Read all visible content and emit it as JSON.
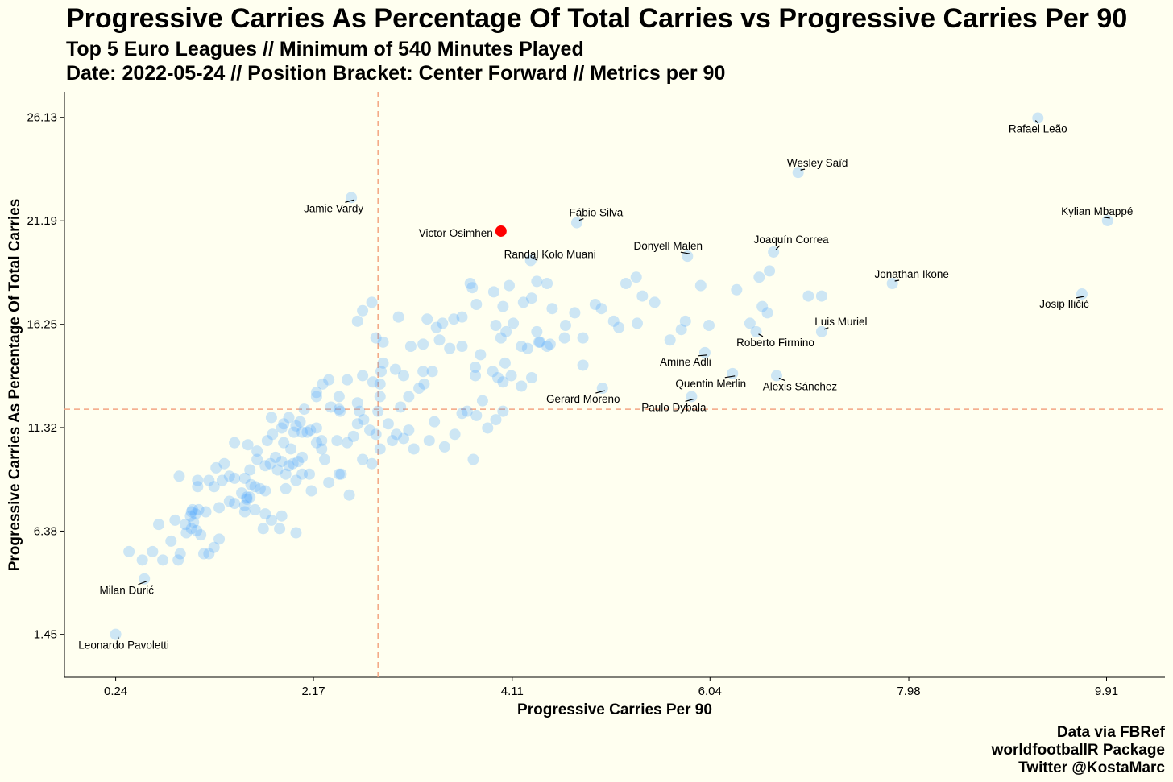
{
  "title": "Progressive Carries As Percentage Of Total Carries vs Progressive Carries Per 90",
  "subtitle_lines": [
    "Top 5 Euro Leagues // Minimum of 540 Minutes Played",
    "Date: 2022-05-24 // Position Bracket: Center Forward // Metrics per 90"
  ],
  "caption_lines": [
    "Data via FBRef",
    "worldfootballR Package",
    "Twitter @KostaMarc"
  ],
  "colors": {
    "background": "#fffff0",
    "point": "#4da6ff",
    "highlight": "#ff0000",
    "reference_line": "#f4a582"
  },
  "chart_data": {
    "type": "scatter",
    "xlabel": "Progressive Carries Per 90",
    "ylabel": "Progressive Carries As Percentage Of Total Carries",
    "xlim": [
      -0.26,
      10.48
    ],
    "ylim": [
      -0.6,
      27.35
    ],
    "xticks": [
      0.24,
      2.17,
      4.11,
      6.04,
      7.98,
      9.91
    ],
    "xtick_labels": [
      "0.24",
      "2.17",
      "4.11",
      "6.04",
      "7.98",
      "9.91"
    ],
    "yticks": [
      1.45,
      6.38,
      11.32,
      16.25,
      21.19,
      26.13
    ],
    "ytick_labels": [
      "1.45",
      "6.38",
      "11.32",
      "16.25",
      "21.19",
      "26.13"
    ],
    "reference_lines": {
      "x": 2.8,
      "y": 12.2
    },
    "grid": false,
    "highlighted": {
      "name": "Victor Osimhen",
      "x": 4.0,
      "y": 20.7
    },
    "labeled_points": [
      {
        "name": "Rafael Leão",
        "x": 9.24,
        "y": 26.1
      },
      {
        "name": "Wesley Saïd",
        "x": 6.9,
        "y": 23.5
      },
      {
        "name": "Jamie Vardy",
        "x": 2.54,
        "y": 22.3
      },
      {
        "name": "Fábio Silva",
        "x": 4.74,
        "y": 21.1
      },
      {
        "name": "Kylian Mbappé",
        "x": 9.92,
        "y": 21.2
      },
      {
        "name": "Joaquín Correa",
        "x": 6.66,
        "y": 19.7
      },
      {
        "name": "Donyell Malen",
        "x": 5.82,
        "y": 19.5
      },
      {
        "name": "Randal Kolo Muani",
        "x": 4.29,
        "y": 19.3
      },
      {
        "name": "Jonathan Ikone",
        "x": 7.82,
        "y": 18.2
      },
      {
        "name": "Josip Iličić",
        "x": 9.67,
        "y": 17.7
      },
      {
        "name": "Luis Muriel",
        "x": 7.13,
        "y": 15.9
      },
      {
        "name": "Roberto Firmino",
        "x": 6.49,
        "y": 15.9
      },
      {
        "name": "Amine Adli",
        "x": 5.99,
        "y": 14.9
      },
      {
        "name": "Quentin Merlin",
        "x": 6.26,
        "y": 13.9
      },
      {
        "name": "Alexis Sánchez",
        "x": 6.69,
        "y": 13.8
      },
      {
        "name": "Gerard Moreno",
        "x": 4.99,
        "y": 13.2
      },
      {
        "name": "Paulo Dybala",
        "x": 5.86,
        "y": 12.8
      },
      {
        "name": "Milan Đurić",
        "x": 0.52,
        "y": 4.1
      },
      {
        "name": "Leonardo Pavoletti",
        "x": 0.24,
        "y": 1.45
      }
    ],
    "points": [
      [
        0.37,
        5.4
      ],
      [
        0.6,
        5.4
      ],
      [
        0.78,
        5.9
      ],
      [
        0.5,
        5.0
      ],
      [
        0.7,
        5.0
      ],
      [
        0.85,
        5.0
      ],
      [
        0.87,
        5.3
      ],
      [
        0.66,
        6.7
      ],
      [
        0.82,
        6.9
      ],
      [
        0.92,
        6.7
      ],
      [
        0.93,
        6.3
      ],
      [
        0.98,
        6.5
      ],
      [
        0.97,
        7.1
      ],
      [
        0.98,
        7.3
      ],
      [
        1.0,
        6.8
      ],
      [
        0.99,
        7.4
      ],
      [
        1.02,
        7.2
      ],
      [
        1.05,
        7.4
      ],
      [
        1.03,
        6.4
      ],
      [
        1.07,
        6.2
      ],
      [
        1.1,
        5.3
      ],
      [
        1.15,
        5.3
      ],
      [
        1.2,
        5.6
      ],
      [
        1.25,
        6.0
      ],
      [
        1.12,
        7.3
      ],
      [
        1.25,
        7.5
      ],
      [
        1.35,
        7.8
      ],
      [
        1.4,
        7.7
      ],
      [
        1.5,
        7.6
      ],
      [
        1.5,
        7.3
      ],
      [
        1.6,
        7.4
      ],
      [
        1.7,
        7.2
      ],
      [
        1.68,
        6.5
      ],
      [
        1.76,
        6.9
      ],
      [
        1.86,
        7.1
      ],
      [
        1.84,
        6.5
      ],
      [
        2.0,
        6.3
      ],
      [
        0.86,
        9.0
      ],
      [
        1.04,
        8.8
      ],
      [
        1.04,
        8.5
      ],
      [
        1.15,
        8.8
      ],
      [
        1.2,
        8.5
      ],
      [
        1.28,
        8.8
      ],
      [
        1.35,
        9.0
      ],
      [
        1.22,
        9.4
      ],
      [
        1.3,
        9.6
      ],
      [
        1.4,
        8.9
      ],
      [
        1.5,
        8.9
      ],
      [
        1.56,
        8.6
      ],
      [
        1.47,
        8.2
      ],
      [
        1.52,
        8.0
      ],
      [
        1.55,
        8.0
      ],
      [
        1.52,
        7.9
      ],
      [
        1.6,
        8.5
      ],
      [
        1.65,
        8.4
      ],
      [
        1.7,
        8.3
      ],
      [
        1.55,
        9.3
      ],
      [
        1.62,
        9.8
      ],
      [
        1.7,
        9.5
      ],
      [
        1.75,
        9.6
      ],
      [
        1.82,
        9.3
      ],
      [
        1.8,
        9.9
      ],
      [
        1.86,
        9.7
      ],
      [
        1.9,
        9.1
      ],
      [
        1.93,
        9.5
      ],
      [
        1.97,
        9.6
      ],
      [
        1.9,
        8.4
      ],
      [
        2.0,
        8.8
      ],
      [
        2.06,
        9.1
      ],
      [
        2.02,
        9.7
      ],
      [
        2.06,
        9.9
      ],
      [
        2.13,
        9.1
      ],
      [
        2.15,
        8.3
      ],
      [
        1.4,
        10.6
      ],
      [
        1.53,
        10.5
      ],
      [
        1.62,
        10.2
      ],
      [
        1.72,
        10.7
      ],
      [
        1.77,
        11.0
      ],
      [
        1.86,
        11.3
      ],
      [
        1.88,
        10.6
      ],
      [
        1.95,
        10.3
      ],
      [
        1.98,
        11.1
      ],
      [
        2.06,
        11.1
      ],
      [
        2.11,
        11.1
      ],
      [
        2.2,
        10.6
      ],
      [
        2.2,
        11.3
      ],
      [
        1.76,
        11.8
      ],
      [
        1.88,
        11.5
      ],
      [
        1.93,
        11.8
      ],
      [
        2.04,
        11.6
      ],
      [
        2.14,
        11.2
      ],
      [
        2.0,
        11.4
      ],
      [
        2.25,
        10.7
      ],
      [
        2.25,
        10.3
      ],
      [
        2.28,
        9.8
      ],
      [
        2.32,
        8.7
      ],
      [
        2.42,
        9.1
      ],
      [
        2.44,
        9.1
      ],
      [
        2.52,
        8.1
      ],
      [
        2.4,
        10.7
      ],
      [
        2.5,
        10.6
      ],
      [
        2.56,
        10.9
      ],
      [
        2.65,
        9.8
      ],
      [
        2.74,
        9.6
      ],
      [
        2.82,
        10.3
      ],
      [
        2.78,
        11.0
      ],
      [
        2.72,
        11.2
      ],
      [
        2.6,
        11.5
      ],
      [
        2.62,
        12.1
      ],
      [
        2.66,
        11.7
      ],
      [
        2.6,
        12.5
      ],
      [
        2.43,
        12.1
      ],
      [
        2.42,
        12.2
      ],
      [
        2.34,
        12.3
      ],
      [
        2.2,
        12.8
      ],
      [
        2.2,
        13.0
      ],
      [
        2.26,
        13.4
      ],
      [
        2.32,
        13.6
      ],
      [
        2.08,
        12.2
      ],
      [
        2.42,
        12.8
      ],
      [
        2.5,
        13.6
      ],
      [
        2.65,
        13.8
      ],
      [
        2.75,
        13.5
      ],
      [
        2.8,
        12.1
      ],
      [
        2.82,
        12.8
      ],
      [
        2.82,
        13.4
      ],
      [
        2.83,
        14.0
      ],
      [
        2.85,
        14.4
      ],
      [
        2.9,
        11.5
      ],
      [
        2.94,
        10.7
      ],
      [
        2.98,
        11.0
      ],
      [
        3.05,
        10.8
      ],
      [
        3.1,
        11.2
      ],
      [
        3.15,
        10.3
      ],
      [
        3.02,
        12.3
      ],
      [
        3.1,
        12.8
      ],
      [
        3.2,
        13.2
      ],
      [
        3.25,
        13.4
      ],
      [
        3.24,
        14.0
      ],
      [
        3.33,
        14.0
      ],
      [
        3.35,
        11.6
      ],
      [
        3.3,
        10.7
      ],
      [
        3.45,
        10.4
      ],
      [
        3.55,
        11.0
      ],
      [
        3.62,
        12.0
      ],
      [
        3.67,
        12.1
      ],
      [
        3.76,
        11.9
      ],
      [
        3.73,
        9.8
      ],
      [
        3.95,
        11.7
      ],
      [
        3.87,
        11.3
      ],
      [
        3.82,
        12.6
      ],
      [
        3.75,
        13.8
      ],
      [
        3.75,
        14.2
      ],
      [
        3.8,
        14.8
      ],
      [
        3.92,
        14.0
      ],
      [
        3.97,
        13.7
      ],
      [
        4.04,
        14.4
      ],
      [
        4.02,
        13.5
      ],
      [
        4.02,
        12.1
      ],
      [
        4.1,
        13.8
      ],
      [
        4.2,
        13.3
      ],
      [
        4.3,
        13.7
      ],
      [
        4.26,
        15.1
      ],
      [
        4.37,
        15.4
      ],
      [
        4.35,
        15.9
      ],
      [
        4.45,
        15.2
      ],
      [
        4.38,
        15.4
      ],
      [
        4.48,
        15.3
      ],
      [
        4.62,
        15.6
      ],
      [
        4.8,
        14.3
      ],
      [
        4.8,
        15.6
      ],
      [
        4.5,
        17.0
      ],
      [
        4.63,
        16.2
      ],
      [
        4.72,
        16.8
      ],
      [
        4.98,
        17.0
      ],
      [
        4.92,
        17.2
      ],
      [
        5.1,
        16.4
      ],
      [
        5.15,
        16.1
      ],
      [
        5.33,
        16.3
      ],
      [
        5.65,
        15.5
      ],
      [
        5.76,
        16.0
      ],
      [
        5.8,
        16.4
      ],
      [
        6.03,
        16.2
      ],
      [
        5.95,
        18.1
      ],
      [
        5.22,
        18.2
      ],
      [
        5.32,
        18.5
      ],
      [
        5.38,
        17.6
      ],
      [
        5.5,
        17.3
      ],
      [
        6.3,
        17.9
      ],
      [
        6.43,
        16.3
      ],
      [
        6.55,
        17.1
      ],
      [
        6.6,
        16.8
      ],
      [
        6.52,
        18.5
      ],
      [
        6.62,
        18.8
      ],
      [
        7.0,
        17.6
      ],
      [
        7.13,
        17.6
      ],
      [
        3.95,
        16.2
      ],
      [
        4.0,
        15.6
      ],
      [
        4.05,
        15.9
      ],
      [
        4.12,
        16.3
      ],
      [
        4.2,
        15.2
      ],
      [
        4.02,
        17.1
      ],
      [
        4.08,
        18.1
      ],
      [
        4.22,
        17.3
      ],
      [
        4.3,
        17.5
      ],
      [
        4.45,
        18.2
      ],
      [
        4.35,
        18.3
      ],
      [
        3.93,
        17.8
      ],
      [
        3.72,
        18.0
      ],
      [
        3.7,
        18.2
      ],
      [
        3.76,
        17.2
      ],
      [
        3.62,
        16.6
      ],
      [
        3.54,
        16.5
      ],
      [
        3.43,
        16.3
      ],
      [
        3.37,
        16.1
      ],
      [
        3.28,
        16.5
      ],
      [
        3.4,
        15.5
      ],
      [
        3.5,
        15.1
      ],
      [
        3.62,
        15.2
      ],
      [
        3.24,
        15.3
      ],
      [
        3.12,
        15.2
      ],
      [
        3.0,
        16.6
      ],
      [
        2.97,
        14.1
      ],
      [
        3.05,
        13.8
      ],
      [
        2.65,
        16.9
      ],
      [
        2.78,
        15.6
      ],
      [
        2.85,
        15.4
      ],
      [
        2.6,
        16.4
      ],
      [
        2.74,
        17.3
      ]
    ]
  }
}
